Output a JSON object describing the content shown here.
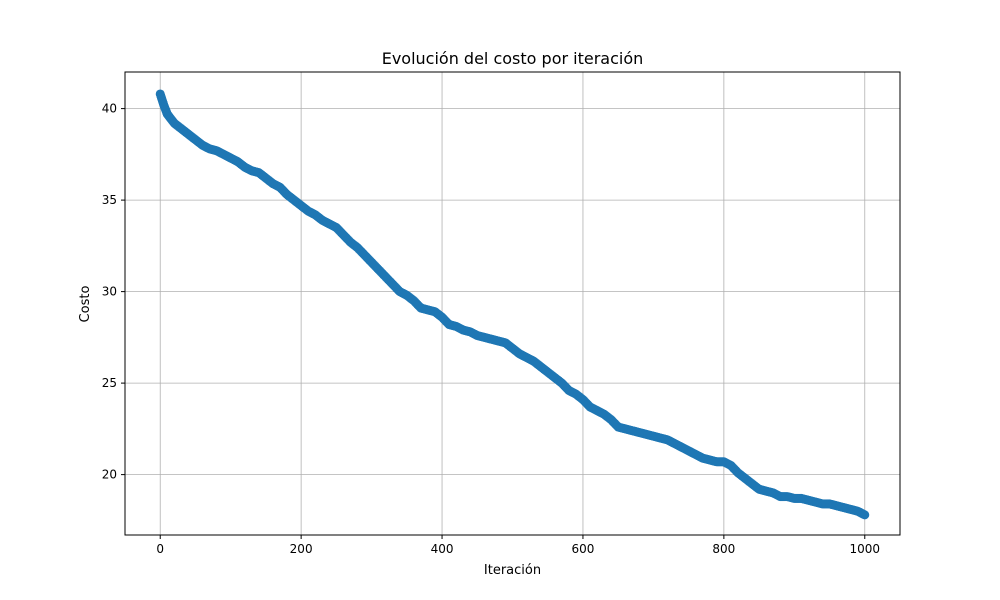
{
  "chart_data": {
    "type": "scatter",
    "title": "Evolución del costo por iteración",
    "xlabel": "Iteración",
    "ylabel": "Costo",
    "xlim": [
      -50,
      1050
    ],
    "ylim": [
      16.7,
      42.0
    ],
    "xticks": [
      0,
      200,
      400,
      600,
      800,
      1000
    ],
    "yticks": [
      20,
      25,
      30,
      35,
      40
    ],
    "grid": true,
    "colors": {
      "series": "#1f77b4",
      "grid": "#b0b0b0",
      "axes": "#000000"
    },
    "series": [
      {
        "points": [
          [
            0,
            40.8
          ],
          [
            5,
            40.2
          ],
          [
            10,
            39.7
          ],
          [
            20,
            39.2
          ],
          [
            30,
            38.9
          ],
          [
            40,
            38.6
          ],
          [
            50,
            38.3
          ],
          [
            60,
            38.0
          ],
          [
            70,
            37.8
          ],
          [
            80,
            37.7
          ],
          [
            90,
            37.5
          ],
          [
            100,
            37.3
          ],
          [
            110,
            37.1
          ],
          [
            120,
            36.8
          ],
          [
            130,
            36.6
          ],
          [
            140,
            36.5
          ],
          [
            150,
            36.2
          ],
          [
            160,
            35.9
          ],
          [
            170,
            35.7
          ],
          [
            180,
            35.3
          ],
          [
            190,
            35.0
          ],
          [
            200,
            34.7
          ],
          [
            210,
            34.4
          ],
          [
            220,
            34.2
          ],
          [
            230,
            33.9
          ],
          [
            240,
            33.7
          ],
          [
            250,
            33.5
          ],
          [
            260,
            33.1
          ],
          [
            270,
            32.7
          ],
          [
            280,
            32.4
          ],
          [
            290,
            32.0
          ],
          [
            300,
            31.6
          ],
          [
            310,
            31.2
          ],
          [
            320,
            30.8
          ],
          [
            330,
            30.4
          ],
          [
            340,
            30.0
          ],
          [
            350,
            29.8
          ],
          [
            360,
            29.5
          ],
          [
            370,
            29.1
          ],
          [
            380,
            29.0
          ],
          [
            390,
            28.9
          ],
          [
            400,
            28.6
          ],
          [
            410,
            28.2
          ],
          [
            420,
            28.1
          ],
          [
            430,
            27.9
          ],
          [
            440,
            27.8
          ],
          [
            450,
            27.6
          ],
          [
            460,
            27.5
          ],
          [
            470,
            27.4
          ],
          [
            480,
            27.3
          ],
          [
            490,
            27.2
          ],
          [
            500,
            26.9
          ],
          [
            510,
            26.6
          ],
          [
            520,
            26.4
          ],
          [
            530,
            26.2
          ],
          [
            540,
            25.9
          ],
          [
            550,
            25.6
          ],
          [
            560,
            25.3
          ],
          [
            570,
            25.0
          ],
          [
            580,
            24.6
          ],
          [
            590,
            24.4
          ],
          [
            600,
            24.1
          ],
          [
            610,
            23.7
          ],
          [
            620,
            23.5
          ],
          [
            630,
            23.3
          ],
          [
            640,
            23.0
          ],
          [
            650,
            22.6
          ],
          [
            660,
            22.5
          ],
          [
            670,
            22.4
          ],
          [
            680,
            22.3
          ],
          [
            690,
            22.2
          ],
          [
            700,
            22.1
          ],
          [
            710,
            22.0
          ],
          [
            720,
            21.9
          ],
          [
            730,
            21.7
          ],
          [
            740,
            21.5
          ],
          [
            750,
            21.3
          ],
          [
            760,
            21.1
          ],
          [
            770,
            20.9
          ],
          [
            780,
            20.8
          ],
          [
            790,
            20.7
          ],
          [
            800,
            20.7
          ],
          [
            810,
            20.5
          ],
          [
            820,
            20.1
          ],
          [
            830,
            19.8
          ],
          [
            840,
            19.5
          ],
          [
            850,
            19.2
          ],
          [
            860,
            19.1
          ],
          [
            870,
            19.0
          ],
          [
            880,
            18.8
          ],
          [
            890,
            18.8
          ],
          [
            900,
            18.7
          ],
          [
            910,
            18.7
          ],
          [
            920,
            18.6
          ],
          [
            930,
            18.5
          ],
          [
            940,
            18.4
          ],
          [
            950,
            18.4
          ],
          [
            960,
            18.3
          ],
          [
            970,
            18.2
          ],
          [
            980,
            18.1
          ],
          [
            990,
            18.0
          ],
          [
            1000,
            17.8
          ]
        ]
      }
    ]
  }
}
